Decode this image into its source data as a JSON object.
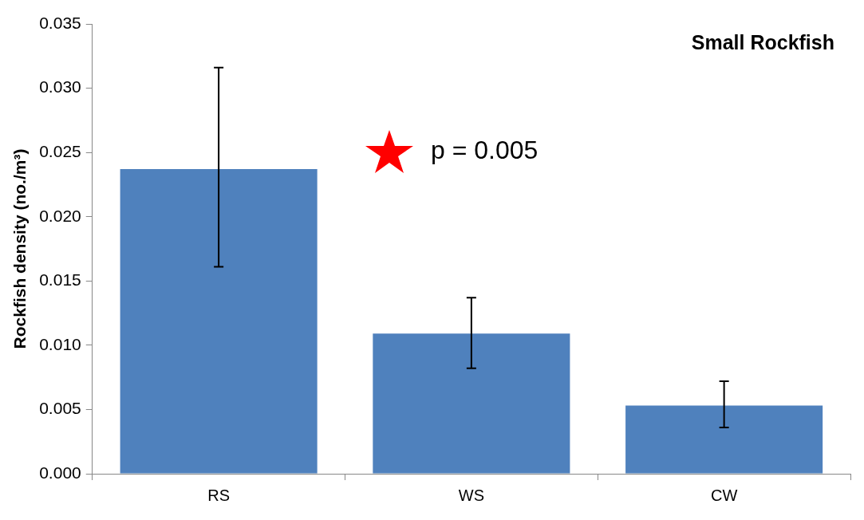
{
  "chart_data": {
    "type": "bar",
    "title": "Small Rockfish",
    "ylabel": "Rockfish density (no./m³)",
    "categories": [
      "RS",
      "WS",
      "CW"
    ],
    "values": [
      0.0237,
      0.0109,
      0.0053
    ],
    "errors": [
      [
        0.0161,
        0.0316
      ],
      [
        0.0082,
        0.0137
      ],
      [
        0.0036,
        0.0072
      ]
    ],
    "color": "#4f81bd",
    "ylim": [
      0,
      0.035
    ],
    "yticks": [
      {
        "value": 0,
        "label": "0.000"
      },
      0.005,
      {
        "value": 0.01,
        "label": "0.010"
      },
      0.015,
      {
        "value": 0.02,
        "label": "0.020"
      },
      0.025,
      {
        "value": 0.03,
        "label": "0.030"
      },
      0.035
    ],
    "grid": false,
    "legend": false,
    "annotations": [
      "p = 0.005"
    ]
  }
}
